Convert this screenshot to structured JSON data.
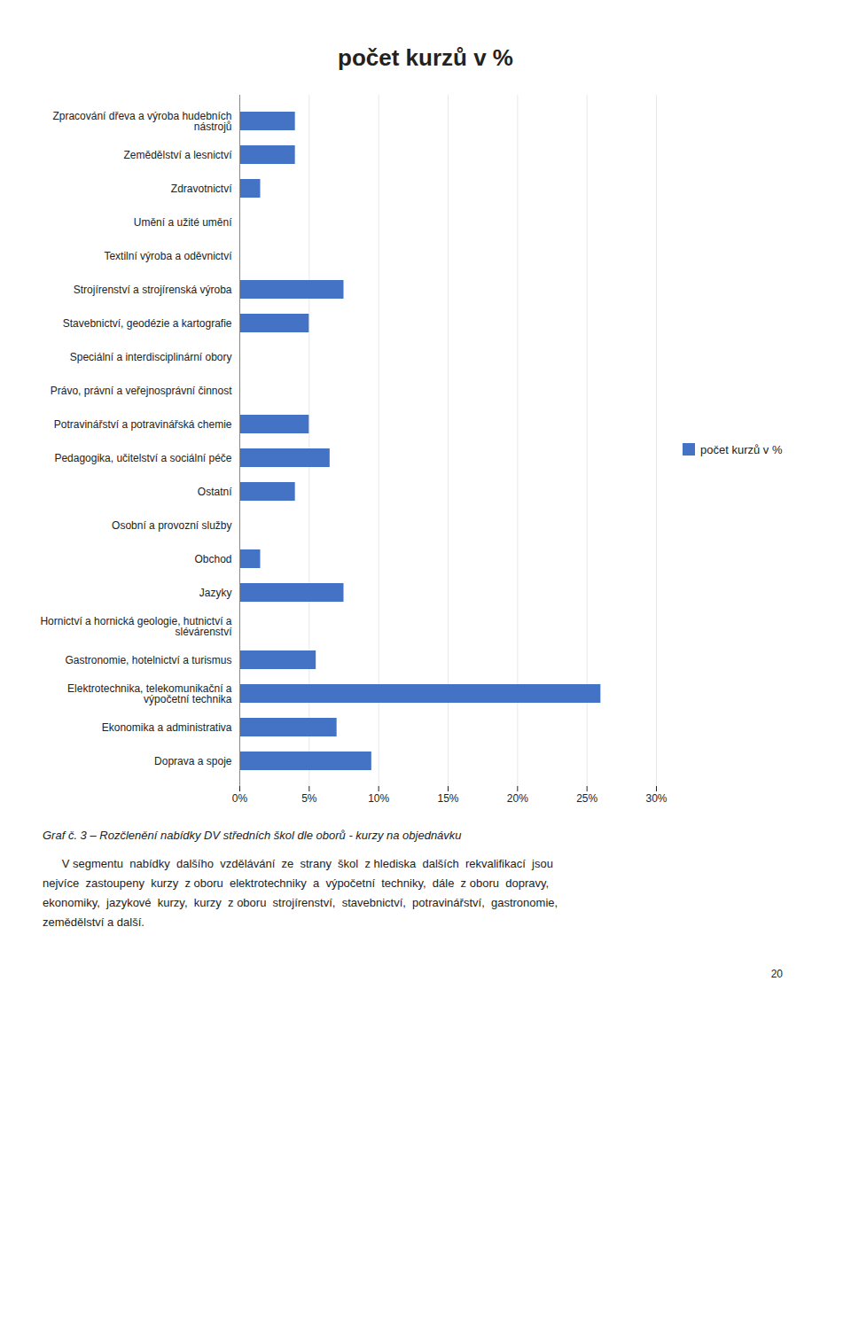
{
  "chart_data": {
    "type": "bar",
    "orientation": "horizontal",
    "title": "počet kurzů v %",
    "categories": [
      "Zpracování dřeva a výroba hudebních\nnástrojů",
      "Zemědělství a lesnictví",
      "Zdravotnictví",
      "Umění a užité umění",
      "Textilní výroba a oděvnictví",
      "Strojírenství a strojírenská výroba",
      "Stavebnictví, geodézie a kartografie",
      "Speciální a interdisciplinární obory",
      "Právo, právní a veřejnosprávní činnost",
      "Potravinářství a potravinářská chemie",
      "Pedagogika, učitelství a sociální péče",
      "Ostatní",
      "Osobní a provozní služby",
      "Obchod",
      "Jazyky",
      "Hornictví a hornická geologie, hutnictví a\nslévárenství",
      "Gastronomie, hotelnictví a turismus",
      "Elektrotechnika, telekomunikační a\nvýpočetní technika",
      "Ekonomika a administrativa",
      "Doprava a spoje"
    ],
    "series": [
      {
        "name": "počet kurzů v %",
        "color": "#4472C4",
        "values": [
          4.0,
          4.0,
          1.5,
          0.0,
          0.0,
          7.5,
          5.0,
          0.0,
          0.0,
          5.0,
          6.5,
          4.0,
          0.0,
          1.5,
          7.5,
          0.0,
          5.5,
          26.0,
          7.0,
          9.5
        ]
      }
    ],
    "xlim": [
      0,
      30
    ],
    "xticks": [
      {
        "value": 0,
        "label": "0%"
      },
      {
        "value": 5,
        "label": "5%"
      },
      {
        "value": 10,
        "label": "10%"
      },
      {
        "value": 15,
        "label": "15%"
      },
      {
        "value": 20,
        "label": "20%"
      },
      {
        "value": 25,
        "label": "25%"
      },
      {
        "value": 30,
        "label": "30%"
      }
    ],
    "grid": true,
    "legend": "right",
    "caption": "Graf č. 3 – Rozčlenění nabídky DV středních škol dle oborů - kurzy na objednávku",
    "body": [
      "      V segmentu  nabídky  dalšího  vzdělávání  ze  strany  škol  z hlediska  dalších  rekvalifikací  jsou",
      "nejvíce  zastoupeny  kurzy  z oboru  elektrotechniky  a  výpočetní  techniky,  dále  z oboru  dopravy,",
      "ekonomiky,  jazykové  kurzy,  kurzy  z oboru  strojírenství,  stavebnictví,  potravinářství,  gastronomie,",
      "zemědělství a další."
    ],
    "page_number": "20"
  }
}
